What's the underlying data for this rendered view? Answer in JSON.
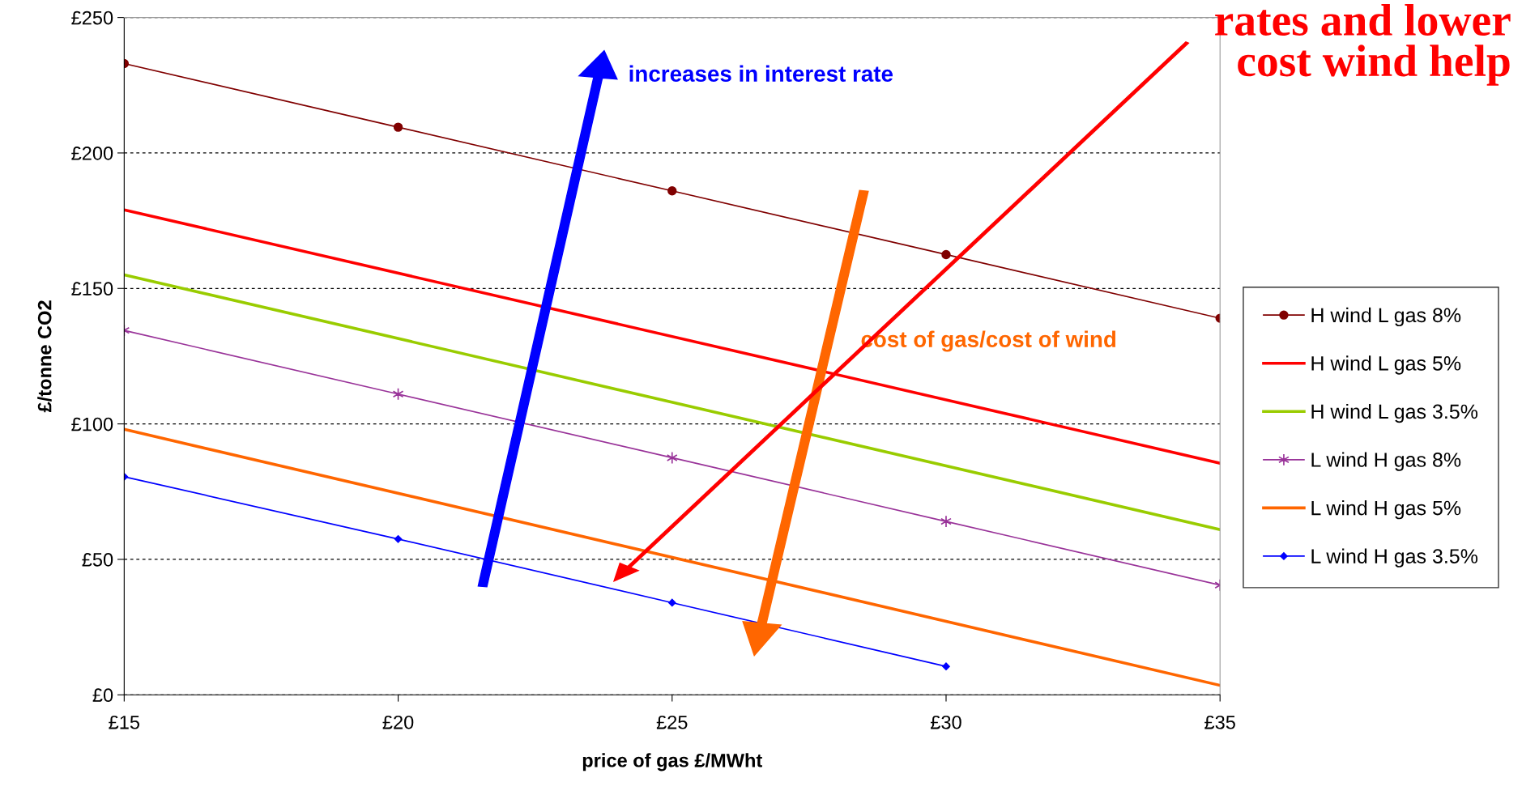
{
  "chart_data": {
    "type": "line",
    "xlabel": "price of gas £/MWht",
    "ylabel": "£/tonne CO2",
    "x": [
      15,
      20,
      25,
      30,
      35
    ],
    "xlim": [
      15,
      35
    ],
    "xticks": [
      {
        "value": 15,
        "label": "£15"
      },
      {
        "value": 20,
        "label": "£20"
      },
      {
        "value": 25,
        "label": "£25"
      },
      {
        "value": 30,
        "label": "£30"
      },
      {
        "value": 35,
        "label": "£35"
      }
    ],
    "ylim": [
      0,
      250
    ],
    "yticks": [
      {
        "value": 0,
        "label": "£0"
      },
      {
        "value": 50,
        "label": "£50"
      },
      {
        "value": 100,
        "label": "£100"
      },
      {
        "value": 150,
        "label": "£150"
      },
      {
        "value": 200,
        "label": "£200"
      },
      {
        "value": 250,
        "label": "£250"
      }
    ],
    "grid": "y",
    "legend": "right",
    "line_style": "solid",
    "series": [
      {
        "name": "H wind L gas 8%",
        "color": "#800000",
        "marker": "circle",
        "values": [
          233,
          209.5,
          186,
          162.5,
          139
        ]
      },
      {
        "name": "H wind L gas 5%",
        "color": "#ff0000",
        "marker": "none",
        "x": [
          15,
          35
        ],
        "values": [
          179,
          85.5
        ]
      },
      {
        "name": "H wind L gas 3.5%",
        "color": "#99cc00",
        "marker": "none",
        "x": [
          15,
          35
        ],
        "values": [
          155,
          61
        ]
      },
      {
        "name": "L wind H gas 8%",
        "color": "#993399",
        "marker": "cross",
        "values": [
          134.5,
          111,
          87.5,
          64,
          40.5
        ]
      },
      {
        "name": "L wind H gas 5%",
        "color": "#ff6600",
        "marker": "none",
        "x": [
          15,
          35
        ],
        "values": [
          98,
          3.5
        ]
      },
      {
        "name": "L wind H gas 3.5%",
        "color": "#0000ff",
        "marker": "diamond",
        "x": [
          15,
          20,
          25,
          30
        ],
        "values": [
          80.5,
          57.5,
          34,
          10.5
        ]
      }
    ],
    "annotations": [
      "increases in interest rate",
      "cost of gas/cost of wind",
      "rates and lower\ncost wind help"
    ]
  }
}
